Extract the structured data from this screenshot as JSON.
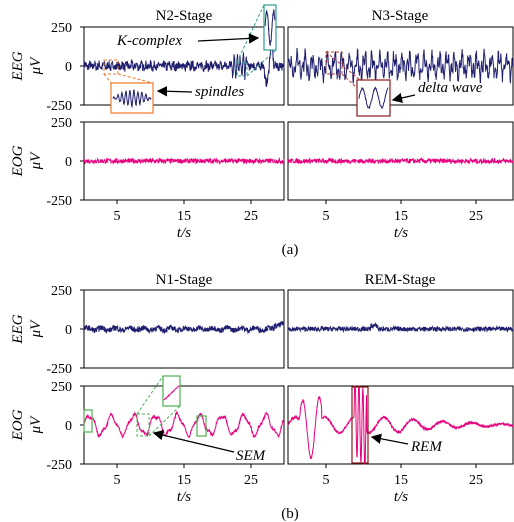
{
  "colors": {
    "eeg": "#1f1f6e",
    "eog": "#e6007e",
    "zoom_orange": "#f07c2a",
    "zoom_teal": "#2f9e8f",
    "zoom_red": "#c0392b",
    "zoom_green": "#4caf50",
    "zoom_brown": "#8b1a1a"
  },
  "chart_data": [
    {
      "type": "line",
      "figure_label": "(a)",
      "panels": [
        {
          "stage": "N2-Stage",
          "signal": "EEG",
          "ylabel": [
            "EEG",
            "μV"
          ],
          "ylim": [
            -250,
            250
          ],
          "yticks": [
            250,
            0,
            -250
          ],
          "xlim": [
            0,
            30
          ],
          "amplitude_uV": 60,
          "events": [
            "K-complex",
            "spindles"
          ]
        },
        {
          "stage": "N3-Stage",
          "signal": "EEG",
          "ylim": [
            -250,
            250
          ],
          "xlim": [
            0,
            30
          ],
          "amplitude_uV": 90,
          "events": [
            "delta wave"
          ]
        },
        {
          "stage": "N2-Stage",
          "signal": "EOG",
          "ylabel": [
            "EOG",
            "μV"
          ],
          "ylim": [
            -250,
            250
          ],
          "yticks": [
            250,
            0,
            -250
          ],
          "xlim": [
            0,
            30
          ],
          "amplitude_uV": 15
        },
        {
          "stage": "N3-Stage",
          "signal": "EOG",
          "ylim": [
            -250,
            250
          ],
          "xlim": [
            0,
            30
          ],
          "amplitude_uV": 15
        }
      ],
      "xticks": [
        5,
        15,
        25
      ],
      "xlabel": "t/s",
      "annotations": [
        "K-complex",
        "spindles",
        "delta wave"
      ]
    },
    {
      "type": "line",
      "figure_label": "(b)",
      "panels": [
        {
          "stage": "N1-Stage",
          "signal": "EEG",
          "ylabel": [
            "EEG",
            "μV"
          ],
          "ylim": [
            -250,
            250
          ],
          "yticks": [
            250,
            0,
            -250
          ],
          "xlim": [
            0,
            30
          ],
          "amplitude_uV": 25
        },
        {
          "stage": "REM-Stage",
          "signal": "EEG",
          "ylim": [
            -250,
            250
          ],
          "xlim": [
            0,
            30
          ],
          "amplitude_uV": 25
        },
        {
          "stage": "N1-Stage",
          "signal": "EOG",
          "ylabel": [
            "EOG",
            "μV"
          ],
          "ylim": [
            -250,
            250
          ],
          "yticks": [
            250,
            0,
            -250
          ],
          "xlim": [
            0,
            30
          ],
          "amplitude_uV": 60,
          "events": [
            "SEM"
          ]
        },
        {
          "stage": "REM-Stage",
          "signal": "EOG",
          "ylim": [
            -250,
            250
          ],
          "xlim": [
            0,
            30
          ],
          "amplitude_uV": 250,
          "events": [
            "REM"
          ]
        }
      ],
      "xticks": [
        5,
        15,
        25
      ],
      "xlabel": "t/s",
      "annotations": [
        "SEM",
        "REM"
      ]
    }
  ]
}
